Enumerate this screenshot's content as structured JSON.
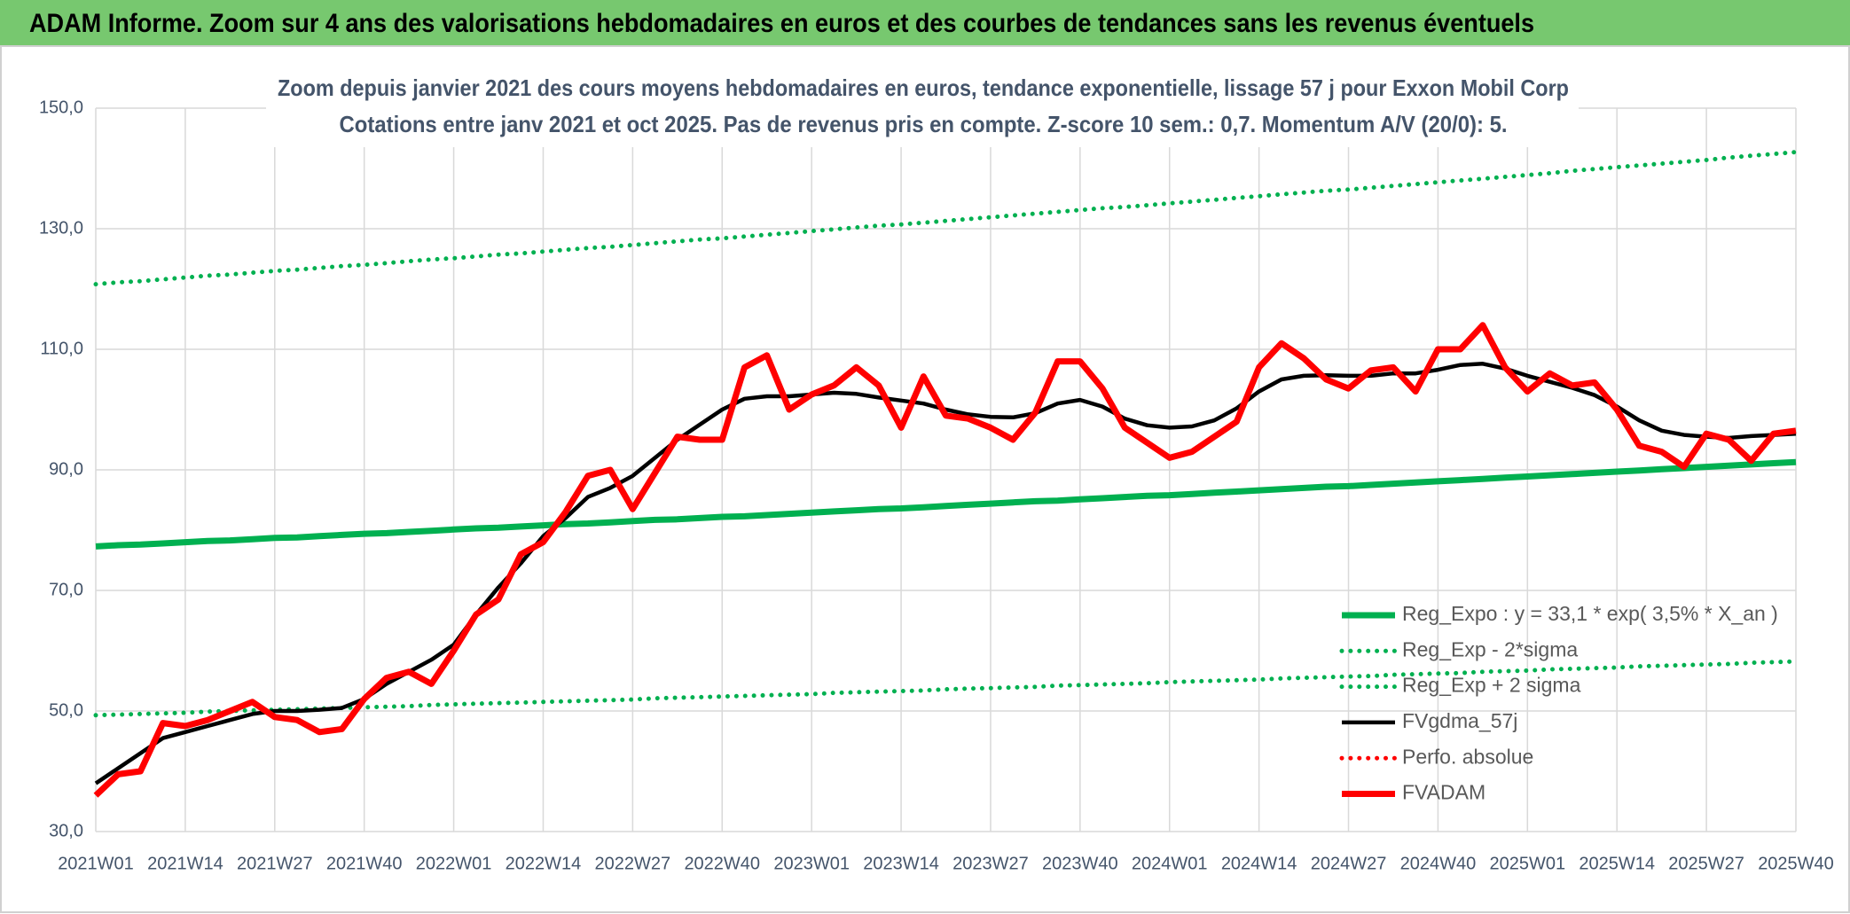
{
  "header": {
    "title": "ADAM Informe. Zoom sur 4 ans des valorisations hebdomadaires en euros et des courbes de tendances sans les revenus éventuels"
  },
  "chart_data": {
    "type": "line",
    "title": "Zoom depuis janvier 2021 des cours moyens hebdomadaires en euros, tendance exponentielle, lissage 57 j pour Exxon Mobil Corp",
    "subtitle": "Cotations entre janv 2021 et oct 2025. Pas de revenus pris en compte. Z-score 10 sem.: 0,7. Momentum A/V (20/0): 5.",
    "categories": [
      "2021W01",
      null,
      null,
      null,
      "2021W14",
      null,
      null,
      null,
      "2021W27",
      null,
      null,
      null,
      "2021W40",
      null,
      null,
      null,
      "2022W01",
      null,
      null,
      null,
      "2022W14",
      null,
      null,
      null,
      "2022W27",
      null,
      null,
      null,
      "2022W40",
      null,
      null,
      null,
      "2023W01",
      null,
      null,
      null,
      "2023W14",
      null,
      null,
      null,
      "2023W27",
      null,
      null,
      null,
      "2023W40",
      null,
      null,
      null,
      "2024W01",
      null,
      null,
      null,
      "2024W14",
      null,
      null,
      null,
      "2024W27",
      null,
      null,
      null,
      "2024W40",
      null,
      null,
      null,
      "2025W01",
      null,
      null,
      null,
      "2025W14",
      null,
      null,
      null,
      "2025W27",
      null,
      null,
      null,
      "2025W40"
    ],
    "series": [
      {
        "name": "Reg_Expo : y = 33,1 * exp( 3,5% *  X_an )",
        "color": "#00b050",
        "line_style": "solid",
        "weight": "thick",
        "values": [
          77.3,
          77.5,
          77.6,
          77.8,
          78.0,
          78.2,
          78.3,
          78.5,
          78.7,
          78.8,
          79.0,
          79.2,
          79.4,
          79.5,
          79.7,
          79.9,
          80.1,
          80.3,
          80.4,
          80.6,
          80.8,
          81.0,
          81.1,
          81.3,
          81.5,
          81.7,
          81.8,
          82.0,
          82.2,
          82.3,
          82.5,
          82.7,
          82.9,
          83.1,
          83.3,
          83.5,
          83.6,
          83.8,
          84.0,
          84.2,
          84.4,
          84.6,
          84.8,
          84.9,
          85.1,
          85.3,
          85.5,
          85.7,
          85.8,
          86.0,
          86.2,
          86.4,
          86.6,
          86.8,
          87.0,
          87.2,
          87.3,
          87.5,
          87.7,
          87.9,
          88.1,
          88.3,
          88.5,
          88.7,
          88.9,
          89.1,
          89.3,
          89.5,
          89.7,
          89.9,
          90.1,
          90.3,
          90.5,
          90.7,
          90.9,
          91.1,
          91.3
        ]
      },
      {
        "name": "Reg_Exp - 2*sigma",
        "color": "#00b050",
        "line_style": "dotted",
        "weight": "normal",
        "values": [
          49.3,
          49.4,
          49.5,
          49.6,
          49.7,
          49.9,
          50.0,
          50.1,
          50.2,
          50.3,
          50.4,
          50.5,
          50.6,
          50.7,
          50.8,
          51.0,
          51.1,
          51.2,
          51.3,
          51.4,
          51.5,
          51.6,
          51.7,
          51.8,
          51.9,
          52.1,
          52.2,
          52.3,
          52.4,
          52.5,
          52.6,
          52.7,
          52.8,
          53.0,
          53.1,
          53.2,
          53.3,
          53.4,
          53.6,
          53.7,
          53.8,
          53.9,
          54.0,
          54.2,
          54.3,
          54.4,
          54.5,
          54.6,
          54.8,
          54.9,
          55.0,
          55.1,
          55.2,
          55.4,
          55.5,
          55.6,
          55.7,
          55.8,
          56.0,
          56.1,
          56.2,
          56.3,
          56.5,
          56.6,
          56.7,
          56.9,
          57.0,
          57.1,
          57.2,
          57.4,
          57.5,
          57.6,
          57.7,
          57.8,
          58.0,
          58.1,
          58.2
        ]
      },
      {
        "name": "Reg_Exp + 2 sigma",
        "color": "#00b050",
        "line_style": "dotted",
        "weight": "normal",
        "values": [
          120.8,
          121.1,
          121.3,
          121.6,
          121.9,
          122.2,
          122.4,
          122.7,
          123.0,
          123.2,
          123.5,
          123.8,
          124.0,
          124.3,
          124.6,
          124.9,
          125.1,
          125.4,
          125.7,
          125.9,
          126.2,
          126.5,
          126.8,
          127.0,
          127.3,
          127.6,
          127.9,
          128.2,
          128.4,
          128.7,
          129.0,
          129.3,
          129.6,
          129.9,
          130.2,
          130.5,
          130.7,
          131.0,
          131.3,
          131.6,
          131.9,
          132.2,
          132.5,
          132.8,
          133.1,
          133.4,
          133.6,
          133.9,
          134.2,
          134.5,
          134.8,
          135.1,
          135.4,
          135.7,
          136.0,
          136.3,
          136.5,
          136.8,
          137.1,
          137.4,
          137.7,
          138.0,
          138.3,
          138.6,
          138.9,
          139.2,
          139.6,
          139.9,
          140.2,
          140.5,
          140.8,
          141.1,
          141.4,
          141.8,
          142.1,
          142.4,
          142.7
        ]
      },
      {
        "name": "FVgdma_57j",
        "color": "#000000",
        "line_style": "solid",
        "weight": "normal",
        "values": [
          38,
          40.5,
          43,
          45.5,
          46.5,
          47.5,
          48.5,
          49.5,
          50,
          50,
          50.2,
          50.5,
          52,
          54.5,
          56.5,
          58.5,
          61,
          66,
          70.5,
          74.5,
          79,
          82,
          85.5,
          87,
          89,
          92,
          95,
          97.5,
          100,
          101.8,
          102.2,
          102.2,
          102.5,
          102.8,
          102.6,
          102,
          101.5,
          101,
          100,
          99.2,
          98.8,
          98.7,
          99.4,
          101,
          101.6,
          100.5,
          98.5,
          97.4,
          97,
          97.2,
          98.2,
          100.2,
          103,
          105,
          105.6,
          105.7,
          105.6,
          105.6,
          106,
          106,
          106.6,
          107.4,
          107.6,
          106.8,
          105.6,
          104.6,
          103.6,
          102.4,
          100.5,
          98.2,
          96.5,
          95.8,
          95.5,
          95.3,
          95.6,
          95.8,
          96
        ]
      },
      {
        "name": "Perfo. absolue",
        "color": "#ff0000",
        "line_style": "dotted",
        "weight": "normal",
        "values": [
          null,
          null,
          null,
          null,
          null,
          null,
          null,
          null,
          null,
          null,
          null,
          null,
          null,
          null,
          null,
          null,
          null,
          null,
          null,
          null,
          null,
          null,
          null,
          null,
          null,
          null,
          null,
          null,
          null,
          null,
          null,
          null,
          null,
          null,
          null,
          null,
          null,
          null,
          null,
          null,
          null,
          null,
          null,
          null,
          null,
          null,
          null,
          null,
          null,
          null,
          null,
          null,
          null,
          null,
          null,
          null,
          null,
          null,
          null,
          null,
          null,
          null,
          null,
          null,
          null,
          null,
          null,
          null,
          null,
          null,
          null,
          null,
          null,
          null,
          null,
          null,
          null
        ]
      },
      {
        "name": "FVADAM",
        "color": "#ff0000",
        "line_style": "solid",
        "weight": "thick",
        "values": [
          36,
          39.5,
          40,
          48,
          47.5,
          48.5,
          50,
          51.5,
          49,
          48.5,
          46.5,
          47,
          52,
          55.5,
          56.5,
          54.5,
          60,
          66,
          68.5,
          76,
          78,
          83,
          89,
          90,
          83.5,
          89.5,
          95.5,
          95,
          95,
          107,
          109,
          100,
          102.5,
          104,
          107,
          104,
          97,
          105.5,
          99,
          98.5,
          97,
          95,
          99.5,
          108,
          108,
          103.5,
          97,
          94.5,
          92,
          93,
          95.5,
          98,
          107,
          111,
          108.5,
          105,
          103.5,
          106.5,
          107,
          103,
          110,
          110,
          114,
          107,
          103,
          106,
          104,
          104.5,
          100,
          94,
          93,
          90.5,
          96,
          95,
          91.5,
          96,
          96.5
        ]
      }
    ],
    "ylim": [
      30,
      150
    ],
    "yticks": [
      {
        "value": 30,
        "label": "30,0"
      },
      {
        "value": 50,
        "label": "50,0"
      },
      {
        "value": 70,
        "label": "70,0"
      },
      {
        "value": 90,
        "label": "90,0"
      },
      {
        "value": 110,
        "label": "110,0"
      },
      {
        "value": 130,
        "label": "130,0"
      },
      {
        "value": 150,
        "label": "150,0"
      }
    ],
    "grid": true,
    "legend": "lower right"
  }
}
